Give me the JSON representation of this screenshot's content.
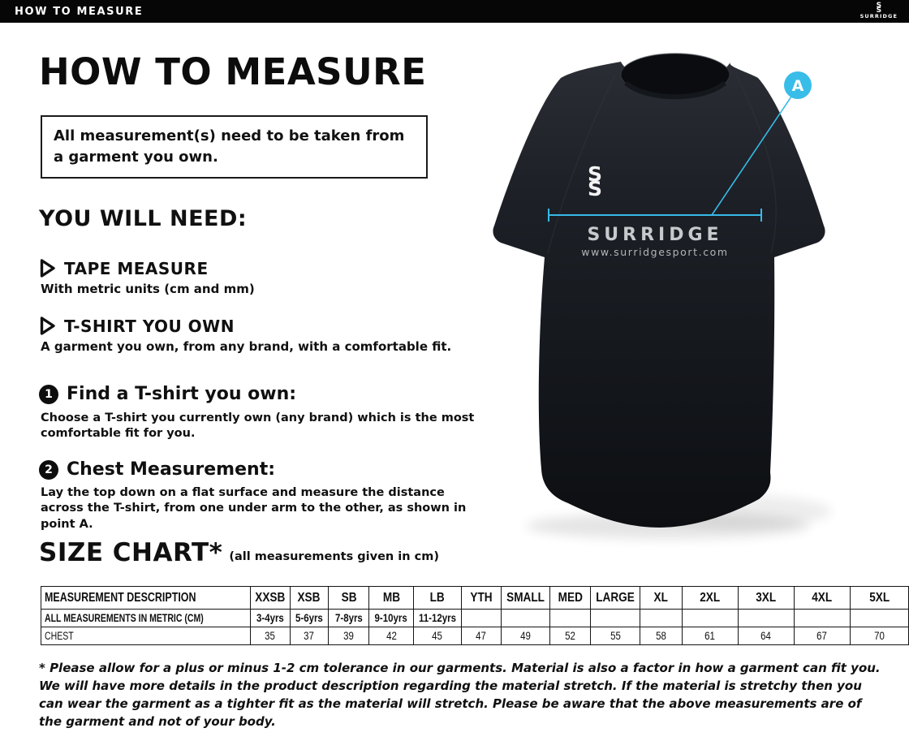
{
  "colors": {
    "accent_cyan": "#38b9e8",
    "bar_bg": "#060606",
    "shirt_dark": "#16191e"
  },
  "top_bar": {
    "title": "HOW TO MEASURE",
    "brand": "SURRIDGE",
    "logo_letter": "S"
  },
  "main": {
    "title": "HOW TO MEASURE",
    "notice": "All measurement(s) need to be taken from a garment you own.",
    "you_will_need": {
      "heading": "YOU WILL NEED:",
      "items": [
        {
          "label": "TAPE MEASURE",
          "description": "With metric units (cm and mm)"
        },
        {
          "label": "T-SHIRT YOU OWN",
          "description": "A garment you own, from any brand, with a comfortable fit."
        }
      ]
    },
    "steps": [
      {
        "number": "1",
        "title": "Find a T-shirt you own:",
        "description": "Choose a T-shirt you currently own (any brand) which is the most comfortable fit for you."
      },
      {
        "number": "2",
        "title": "Chest Measurement:",
        "description": "Lay the top down on a flat surface and measure the distance across the T-shirt, from one under arm to the other, as shown in point A."
      }
    ]
  },
  "size_chart": {
    "title": "SIZE CHART*",
    "subtitle": "(all measurements given in cm)",
    "columns": [
      "MEASUREMENT DESCRIPTION",
      "XXSB",
      "XSB",
      "SB",
      "MB",
      "LB",
      "YTH",
      "SMALL",
      "MED",
      "LARGE",
      "XL",
      "2XL",
      "3XL",
      "4XL",
      "5XL"
    ],
    "rows": [
      {
        "label": "ALL MEASUREMENTS IN METRIC (CM)",
        "values": [
          "3-4yrs",
          "5-6yrs",
          "7-8yrs",
          "9-10yrs",
          "11-12yrs",
          "",
          "",
          "",
          "",
          "",
          "",
          "",
          "",
          ""
        ]
      },
      {
        "label": "CHEST",
        "values": [
          "35",
          "37",
          "39",
          "42",
          "45",
          "47",
          "49",
          "52",
          "55",
          "58",
          "61",
          "64",
          "67",
          "70"
        ]
      }
    ]
  },
  "footnote": "* Please allow for a plus or minus 1-2 cm tolerance in our garments. Material is also a factor in how a garment can fit you. We will have more details in the product description regarding the material stretch.  If the material is stretchy then you can wear the garment as a tighter fit as the material will stretch.  Please be aware that the above measurements are of the garment and not of your body.",
  "shirt": {
    "logo_letter": "S",
    "wordmark": "SURRIDGE",
    "website": "www.surridgesport.com",
    "marker_label": "A"
  }
}
